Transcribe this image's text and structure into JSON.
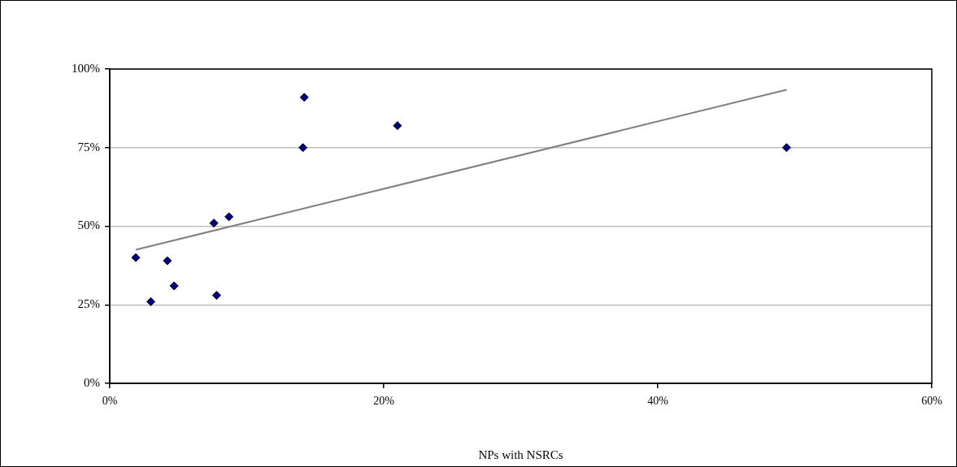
{
  "chart_data": {
    "type": "scatter",
    "xlabel": "NPs with NSRCs",
    "xlim": [
      0,
      60
    ],
    "xticks": [
      {
        "value": 0,
        "label": "0%"
      },
      {
        "value": 20,
        "label": "20%"
      },
      {
        "value": 40,
        "label": "40%"
      },
      {
        "value": 60,
        "label": "60%"
      }
    ],
    "ylim": [
      0,
      100
    ],
    "yticks": [
      {
        "value": 0,
        "label": "0%"
      },
      {
        "value": 25,
        "label": "25%"
      },
      {
        "value": 50,
        "label": "50%"
      },
      {
        "value": 75,
        "label": "75%"
      },
      {
        "value": 100,
        "label": "100%"
      }
    ],
    "grid": "y",
    "legend": false,
    "marker": "diamond",
    "series": [
      {
        "color": "#000080",
        "x": [
          1.9,
          3.0,
          4.2,
          4.7,
          7.6,
          8.7,
          7.8,
          14.2,
          14.1,
          21.0,
          49.4
        ],
        "values": [
          40,
          26,
          39,
          31,
          51,
          53,
          28,
          91,
          75,
          82,
          75
        ]
      },
      {
        "type": "line",
        "color": "#808080",
        "line_style": "solid",
        "marker": "none",
        "x": [
          1.9,
          49.4
        ],
        "values": [
          42.5,
          93.4
        ]
      }
    ]
  }
}
